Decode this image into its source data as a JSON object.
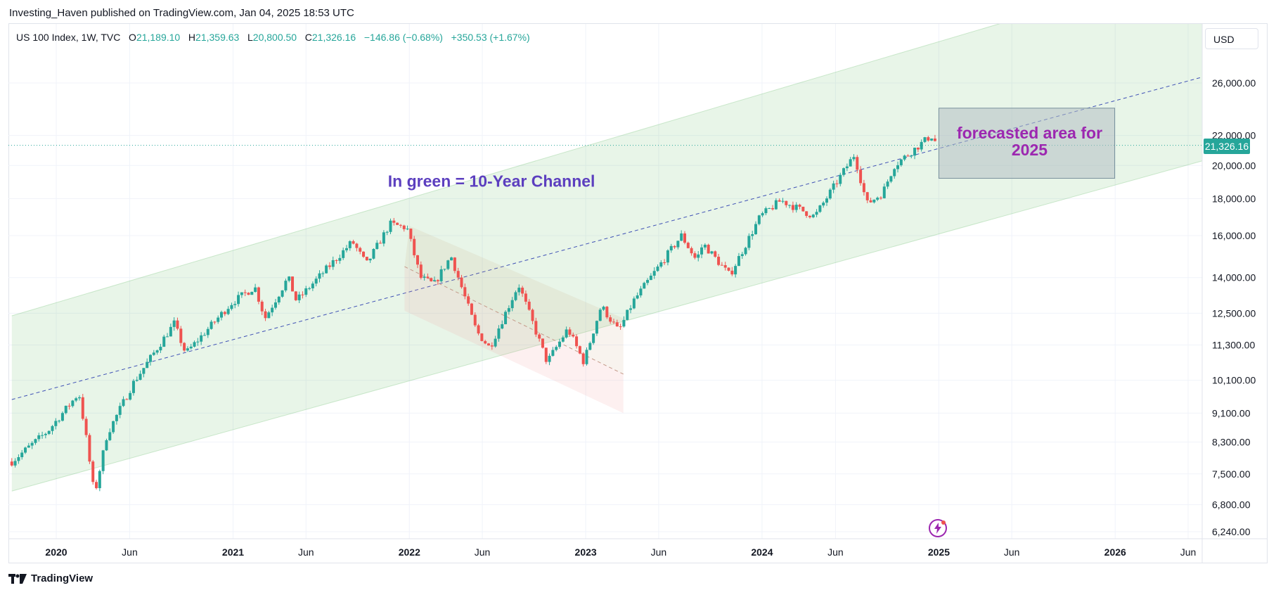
{
  "header": {
    "publisher_line": "Investing_Haven published on TradingView.com, Jan 04, 2025 18:53 UTC"
  },
  "legend": {
    "symbol": "US 100 Index, 1W, TVC",
    "open_label": "O",
    "open_value": "21,189.10",
    "high_label": "H",
    "high_value": "21,359.63",
    "low_label": "L",
    "low_value": "20,800.50",
    "close_label": "C",
    "close_value": "21,326.16",
    "change": "−146.86 (−0.68%)",
    "extra_change": "+350.53 (+1.67%)"
  },
  "currency_button": "USD",
  "last_price_tag": "21,326.16",
  "footer_brand": "TradingView",
  "colors": {
    "up": "#26a69a",
    "down": "#ef5350",
    "channel_fill": "#4caf50",
    "annotation_blue": "#5c3fbf",
    "annotation_purple": "#9c27b0",
    "forecast_box": "#b2bec3"
  },
  "icons": {
    "lightning": "lightning-icon",
    "brand": "tradingview-logo-icon"
  },
  "chart_data": {
    "type": "candlestick",
    "scale": "log",
    "ylim": [
      6000,
      30000
    ],
    "x_range": [
      "2019-10-01",
      "2026-07-01"
    ],
    "y_ticks": [
      "26,000.00",
      "22,000.00",
      "20,000.00",
      "18,000.00",
      "16,000.00",
      "14,000.00",
      "12,500.00",
      "11,300.00",
      "10,100.00",
      "9,100.00",
      "8,300.00",
      "7,500.00",
      "6,800.00",
      "6,240.00"
    ],
    "y_tick_values": [
      26000,
      22000,
      20000,
      18000,
      16000,
      14000,
      12500,
      11300,
      10100,
      9100,
      8300,
      7500,
      6800,
      6240
    ],
    "x_ticks": [
      {
        "label": "2020",
        "date": "2020-01-01",
        "bold": true
      },
      {
        "label": "Jun",
        "date": "2020-06-01",
        "bold": false
      },
      {
        "label": "2021",
        "date": "2021-01-01",
        "bold": true
      },
      {
        "label": "Jun",
        "date": "2021-06-01",
        "bold": false
      },
      {
        "label": "2022",
        "date": "2022-01-01",
        "bold": true
      },
      {
        "label": "Jun",
        "date": "2022-06-01",
        "bold": false
      },
      {
        "label": "2023",
        "date": "2023-01-01",
        "bold": true
      },
      {
        "label": "Jun",
        "date": "2023-06-01",
        "bold": false
      },
      {
        "label": "2024",
        "date": "2024-01-01",
        "bold": true
      },
      {
        "label": "Jun",
        "date": "2024-06-01",
        "bold": false
      },
      {
        "label": "2025",
        "date": "2025-01-01",
        "bold": true
      },
      {
        "label": "Jun",
        "date": "2025-06-01",
        "bold": false
      },
      {
        "label": "2026",
        "date": "2026-01-01",
        "bold": true
      },
      {
        "label": "Jun",
        "date": "2026-06-01",
        "bold": false
      }
    ],
    "series": [
      {
        "name": "US 100 Index",
        "type": "weekly",
        "keypoints": [
          [
            "2019-10-01",
            7800
          ],
          [
            "2019-12-15",
            8600
          ],
          [
            "2020-02-17",
            9700
          ],
          [
            "2020-03-02",
            8500
          ],
          [
            "2020-03-20",
            7000
          ],
          [
            "2020-04-15",
            8500
          ],
          [
            "2020-06-08",
            10000
          ],
          [
            "2020-09-01",
            12100
          ],
          [
            "2020-09-25",
            11000
          ],
          [
            "2020-12-28",
            12900
          ],
          [
            "2021-02-15",
            13600
          ],
          [
            "2021-03-08",
            12300
          ],
          [
            "2021-04-25",
            14000
          ],
          [
            "2021-05-12",
            13000
          ],
          [
            "2021-09-05",
            15700
          ],
          [
            "2021-10-04",
            14600
          ],
          [
            "2021-11-22",
            16600
          ],
          [
            "2021-12-27",
            16400
          ],
          [
            "2022-01-24",
            14000
          ],
          [
            "2022-02-21",
            13700
          ],
          [
            "2022-03-28",
            15000
          ],
          [
            "2022-05-20",
            11800
          ],
          [
            "2022-06-16",
            11200
          ],
          [
            "2022-08-15",
            13700
          ],
          [
            "2022-10-13",
            10700
          ],
          [
            "2022-11-25",
            11900
          ],
          [
            "2022-12-28",
            10700
          ],
          [
            "2023-02-02",
            12800
          ],
          [
            "2023-03-10",
            11800
          ],
          [
            "2023-04-10",
            13000
          ],
          [
            "2023-07-18",
            16000
          ],
          [
            "2023-08-18",
            14800
          ],
          [
            "2023-09-01",
            15600
          ],
          [
            "2023-10-26",
            14100
          ],
          [
            "2023-12-28",
            17000
          ],
          [
            "2024-02-09",
            17900
          ],
          [
            "2024-04-19",
            17000
          ],
          [
            "2024-07-10",
            20700
          ],
          [
            "2024-08-05",
            17700
          ],
          [
            "2024-09-06",
            18300
          ],
          [
            "2024-10-01",
            20000
          ],
          [
            "2024-12-16",
            22000
          ],
          [
            "2024-12-30",
            21326
          ]
        ]
      }
    ],
    "last_price": 21326.16,
    "channel": {
      "name": "10-Year Channel",
      "upper": [
        [
          "2019-10-01",
          12400
        ],
        [
          "2026-07-01",
          38000
        ]
      ],
      "lower": [
        [
          "2019-10-01",
          7100
        ],
        [
          "2026-07-01",
          20300
        ]
      ]
    },
    "midline": [
      [
        "2019-10-01",
        9500
      ],
      [
        "2026-07-01",
        26500
      ]
    ],
    "bear_channel": {
      "upper": [
        [
          "2022-01-01",
          16500
        ],
        [
          "2023-03-20",
          12300
        ]
      ],
      "lower": [
        [
          "2021-12-22",
          12600
        ],
        [
          "2023-03-20",
          9100
        ]
      ],
      "midline": [
        [
          "2021-12-22",
          14500
        ],
        [
          "2023-03-20",
          10300
        ]
      ]
    },
    "forecast_box": {
      "x": [
        "2025-01-01",
        "2025-12-31"
      ],
      "y": [
        19200,
        24000
      ]
    },
    "annotations": [
      {
        "text": "In green = 10-Year Channel",
        "color": "#5c3fbf",
        "at": [
          "2022-06-20",
          18700
        ]
      },
      {
        "text_lines": [
          "forecasted area for",
          "2025"
        ],
        "color": "#9c27b0",
        "at": [
          "2025-06-20",
          21500
        ]
      }
    ]
  }
}
